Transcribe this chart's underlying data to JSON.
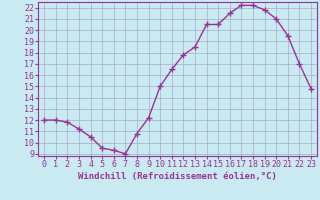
{
  "x": [
    0,
    1,
    2,
    3,
    4,
    5,
    6,
    7,
    8,
    9,
    10,
    11,
    12,
    13,
    14,
    15,
    16,
    17,
    18,
    19,
    20,
    21,
    22,
    23
  ],
  "y": [
    12,
    12,
    11.8,
    11.2,
    10.5,
    9.5,
    9.3,
    9.0,
    10.8,
    12.2,
    15.0,
    16.5,
    17.8,
    18.5,
    20.5,
    20.5,
    21.5,
    22.2,
    22.2,
    21.8,
    21.0,
    19.5,
    17.0,
    14.8
  ],
  "line_color": "#993399",
  "marker_color": "#993399",
  "bg_color": "#c8eaf0",
  "grid_color": "#aaaacc",
  "xlabel": "Windchill (Refroidissement éolien,°C)",
  "xlim": [
    -0.5,
    23.5
  ],
  "ylim": [
    8.8,
    22.5
  ],
  "yticks": [
    9,
    10,
    11,
    12,
    13,
    14,
    15,
    16,
    17,
    18,
    19,
    20,
    21,
    22
  ],
  "xticks": [
    0,
    1,
    2,
    3,
    4,
    5,
    6,
    7,
    8,
    9,
    10,
    11,
    12,
    13,
    14,
    15,
    16,
    17,
    18,
    19,
    20,
    21,
    22,
    23
  ],
  "xlabel_color": "#993399",
  "tick_color": "#993399",
  "axis_color": "#993399",
  "xlabel_fontsize": 6.5,
  "tick_fontsize": 6.0,
  "marker_size": 4,
  "linewidth": 1.0
}
